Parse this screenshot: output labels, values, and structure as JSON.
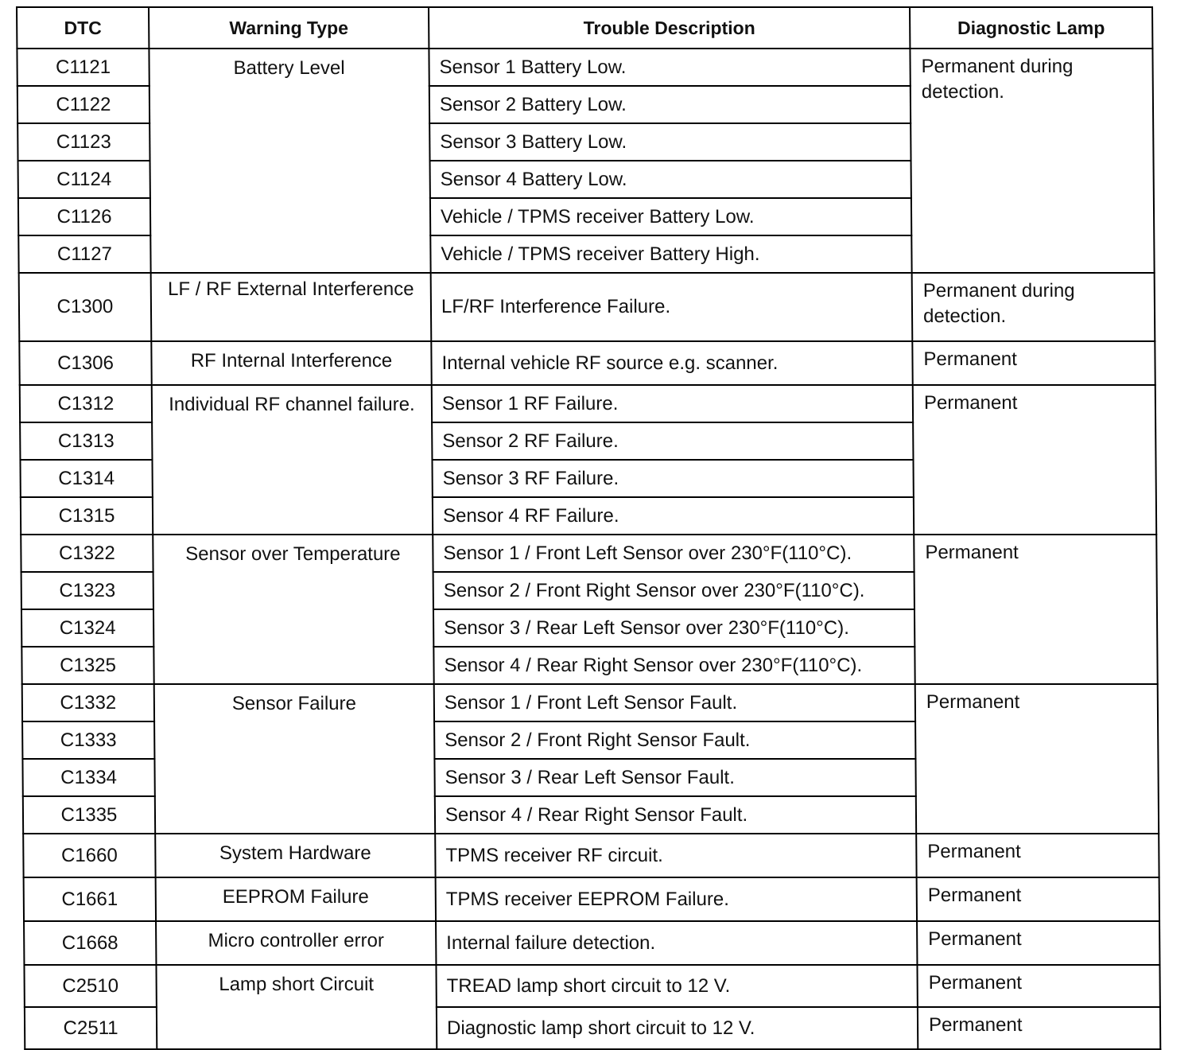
{
  "headers": [
    "DTC",
    "Warning Type",
    "Trouble Description",
    "Diagnostic Lamp"
  ],
  "groups": [
    {
      "warning": "Battery Level",
      "lamp": "Permanent during detection.",
      "rows": [
        {
          "dtc": "C1121",
          "desc": "Sensor 1 Battery Low."
        },
        {
          "dtc": "C1122",
          "desc": "Sensor 2 Battery Low."
        },
        {
          "dtc": "C1123",
          "desc": "Sensor 3 Battery Low."
        },
        {
          "dtc": "C1124",
          "desc": "Sensor 4 Battery Low."
        },
        {
          "dtc": "C1126",
          "desc": "Vehicle / TPMS receiver Battery Low."
        },
        {
          "dtc": "C1127",
          "desc": "Vehicle / TPMS receiver Battery High."
        }
      ]
    },
    {
      "warning": "LF / RF External Interference",
      "lamp": "Permanent during detection.",
      "rows": [
        {
          "dtc": "C1300",
          "desc": "LF/RF Interference Failure."
        }
      ]
    },
    {
      "warning": "RF Internal Interference",
      "lamp": "Permanent",
      "rows": [
        {
          "dtc": "C1306",
          "desc": "Internal vehicle RF source e.g. scanner."
        }
      ]
    },
    {
      "warning": "Individual RF channel failure.",
      "lamp": "Permanent",
      "rows": [
        {
          "dtc": "C1312",
          "desc": "Sensor 1 RF Failure."
        },
        {
          "dtc": "C1313",
          "desc": "Sensor 2 RF Failure."
        },
        {
          "dtc": "C1314",
          "desc": "Sensor 3 RF Failure."
        },
        {
          "dtc": "C1315",
          "desc": "Sensor 4 RF Failure."
        }
      ]
    },
    {
      "warning": "Sensor over Temperature",
      "lamp": "Permanent",
      "rows": [
        {
          "dtc": "C1322",
          "desc": "Sensor 1 / Front Left Sensor over 230°F(110°C)."
        },
        {
          "dtc": "C1323",
          "desc": "Sensor 2 / Front Right Sensor over 230°F(110°C)."
        },
        {
          "dtc": "C1324",
          "desc": "Sensor 3 / Rear Left Sensor over 230°F(110°C)."
        },
        {
          "dtc": "C1325",
          "desc": "Sensor 4 / Rear Right Sensor over 230°F(110°C)."
        }
      ]
    },
    {
      "warning": "Sensor Failure",
      "lamp": "Permanent",
      "rows": [
        {
          "dtc": "C1332",
          "desc": "Sensor 1 / Front Left Sensor Fault."
        },
        {
          "dtc": "C1333",
          "desc": "Sensor 2 / Front Right Sensor Fault."
        },
        {
          "dtc": "C1334",
          "desc": "Sensor 3 / Rear Left Sensor Fault."
        },
        {
          "dtc": "C1335",
          "desc": "Sensor 4 / Rear Right Sensor Fault."
        }
      ]
    },
    {
      "warning": "System Hardware",
      "lamp": "Permanent",
      "rows": [
        {
          "dtc": "C1660",
          "desc": "TPMS receiver RF circuit."
        }
      ]
    },
    {
      "warning": "EEPROM Failure",
      "lamp": "Permanent",
      "rows": [
        {
          "dtc": "C1661",
          "desc": "TPMS receiver EEPROM Failure."
        }
      ]
    },
    {
      "warning": "Micro controller error",
      "lamp": "Permanent",
      "rows": [
        {
          "dtc": "C1668",
          "desc": "Internal failure detection."
        }
      ]
    },
    {
      "warning": "Lamp short Circuit",
      "lamp_per_row": true,
      "rows": [
        {
          "dtc": "C2510",
          "desc": "TREAD lamp short circuit to 12 V.",
          "lamp": "Permanent"
        },
        {
          "dtc": "C2511",
          "desc": "Diagnostic lamp short circuit to 12 V.",
          "lamp": "Permanent"
        }
      ]
    }
  ]
}
